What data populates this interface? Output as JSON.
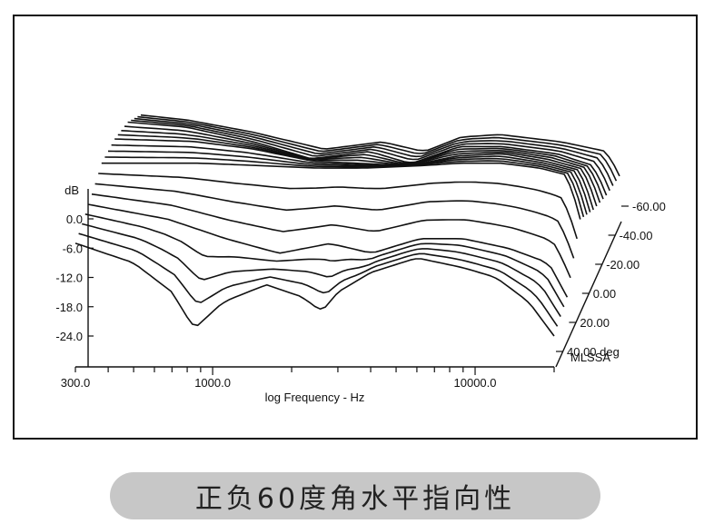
{
  "chart_data": {
    "type": "waterfall-line",
    "software_label": "MLSSA",
    "x_axis": {
      "label": "log Frequency - Hz",
      "scale": "log",
      "range": [
        300,
        20000
      ],
      "tick_labels": [
        "300.0",
        "1000.0",
        "10000.0"
      ]
    },
    "y_axis": {
      "unit_label": "dB",
      "range": [
        -24,
        3
      ],
      "tick_labels": [
        "0.0",
        "-6.0",
        "-12.0",
        "-18.0",
        "-24.0"
      ]
    },
    "depth_axis": {
      "unit_label": "deg",
      "tick_labels": [
        "-60.00",
        "-40.00",
        "-20.00",
        "0.00",
        "20.00",
        "40.00 deg"
      ]
    },
    "series": [
      {
        "angle": -60,
        "freq": [
          300,
          450,
          800,
          1500,
          2500,
          3600,
          5000,
          7000,
          12000,
          18000,
          20000
        ],
        "db": [
          -8.5,
          -9.5,
          -12,
          -15.5,
          -14,
          -16,
          -13,
          -12.5,
          -14,
          -16,
          -21
        ]
      },
      {
        "angle": -40,
        "freq": [
          300,
          500,
          900,
          1500,
          2500,
          3600,
          5500,
          8000,
          13000,
          18000,
          20000
        ],
        "db": [
          -4,
          -5,
          -8,
          -11.5,
          -10,
          -12.5,
          -9,
          -9,
          -10.5,
          -13,
          -19
        ]
      },
      {
        "angle": -20,
        "freq": [
          300,
          600,
          1000,
          1700,
          2600,
          4000,
          6000,
          9000,
          13000,
          18000,
          20000
        ],
        "db": [
          -1.5,
          -2,
          -3.5,
          -6,
          -6.5,
          -7,
          -5,
          -4.5,
          -6,
          -8,
          -16
        ]
      },
      {
        "angle": 0,
        "freq": [
          300,
          700,
          1200,
          2000,
          3000,
          5000,
          7000,
          10000,
          14000,
          18000,
          20000
        ],
        "db": [
          -0.5,
          -0.5,
          -1,
          -1.5,
          -1.5,
          -1,
          -0.5,
          -0.5,
          -1.5,
          -3,
          -12
        ]
      },
      {
        "angle": 20,
        "freq": [
          300,
          600,
          1000,
          1600,
          2500,
          3600,
          5500,
          8000,
          12000,
          17000,
          20000
        ],
        "db": [
          -3,
          -6,
          -10,
          -13,
          -11,
          -13,
          -10,
          -10,
          -12,
          -15,
          -22
        ]
      },
      {
        "angle": 40,
        "freq": [
          300,
          500,
          700,
          850,
          1100,
          1600,
          2200,
          2600,
          3000,
          4000,
          6000,
          9000,
          12000,
          16000,
          20000
        ],
        "db": [
          -5,
          -9,
          -15,
          -22.5,
          -17,
          -13.5,
          -16,
          -19,
          -15,
          -11,
          -8,
          -10,
          -12,
          -17,
          -24
        ]
      }
    ]
  },
  "caption": "正负60度角水平指向性"
}
